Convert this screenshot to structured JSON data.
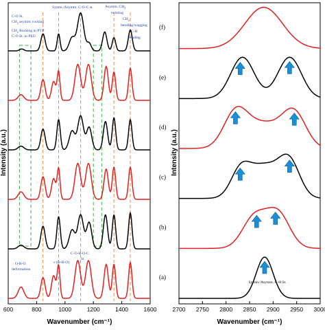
{
  "chart_data": [
    {
      "type": "line",
      "panel": "left",
      "xlabel": "Wavenumber (cm⁻¹)",
      "ylabel": "Intensity (a.u.)",
      "xlim": [
        600,
        1600
      ],
      "x_ticks": [
        "600",
        "800",
        "1000",
        "1200",
        "1400",
        "1600"
      ],
      "spectra": [
        {
          "color": "#000000",
          "peaks": [
            [
              695,
              0.05,
              15
            ],
            [
              845,
              0.45,
              15
            ],
            [
              955,
              0.45,
              10
            ],
            [
              1050,
              0.35,
              20
            ],
            [
              1110,
              1.0,
              22
            ],
            [
              1170,
              0.2,
              15
            ],
            [
              1280,
              0.5,
              15
            ],
            [
              1345,
              0.35,
              12
            ],
            [
              1460,
              0.55,
              14
            ]
          ]
        },
        {
          "color": "#e02020",
          "peaks": [
            [
              690,
              0.15,
              20
            ],
            [
              845,
              0.55,
              15
            ],
            [
              920,
              0.5,
              15
            ],
            [
              955,
              0.75,
              10
            ],
            [
              1090,
              0.95,
              20
            ],
            [
              1165,
              0.95,
              20
            ],
            [
              1290,
              0.9,
              15
            ],
            [
              1345,
              0.75,
              12
            ],
            [
              1460,
              0.85,
              12
            ]
          ]
        },
        {
          "color": "#000000",
          "peaks": [
            [
              690,
              0.1,
              20
            ],
            [
              845,
              0.55,
              15
            ],
            [
              955,
              0.8,
              12
            ],
            [
              1050,
              0.5,
              20
            ],
            [
              1110,
              0.9,
              20
            ],
            [
              1170,
              0.6,
              18
            ],
            [
              1285,
              0.75,
              15
            ],
            [
              1345,
              0.85,
              12
            ],
            [
              1460,
              0.8,
              12
            ]
          ]
        },
        {
          "color": "#e02020",
          "peaks": [
            [
              690,
              0.2,
              20
            ],
            [
              845,
              0.6,
              15
            ],
            [
              920,
              0.55,
              15
            ],
            [
              955,
              0.8,
              10
            ],
            [
              1090,
              0.95,
              20
            ],
            [
              1165,
              0.95,
              20
            ],
            [
              1290,
              0.8,
              15
            ],
            [
              1345,
              0.85,
              12
            ],
            [
              1460,
              0.85,
              12
            ]
          ]
        },
        {
          "color": "#000000",
          "peaks": [
            [
              690,
              0.1,
              20
            ],
            [
              845,
              0.6,
              15
            ],
            [
              955,
              0.85,
              12
            ],
            [
              1050,
              0.5,
              20
            ],
            [
              1110,
              0.9,
              20
            ],
            [
              1170,
              0.7,
              18
            ],
            [
              1285,
              0.9,
              15
            ],
            [
              1345,
              0.9,
              12
            ],
            [
              1460,
              0.95,
              12
            ]
          ]
        },
        {
          "color": "#e02020",
          "peaks": [
            [
              690,
              0.3,
              20
            ],
            [
              845,
              0.55,
              15
            ],
            [
              920,
              0.6,
              15
            ],
            [
              955,
              0.85,
              10
            ],
            [
              1090,
              1.0,
              20
            ],
            [
              1165,
              1.0,
              20
            ],
            [
              1290,
              0.9,
              15
            ],
            [
              1345,
              0.9,
              12
            ],
            [
              1460,
              0.95,
              12
            ]
          ]
        }
      ],
      "annotations": [
        {
          "text": "Symm./Asymm. C-O-C st."
        },
        {
          "text": "Asymm. CH",
          "sub": "2"
        },
        {
          "text": "twisting"
        },
        {
          "text": "CH",
          "sub": "2"
        },
        {
          "text": "bending/wagging"
        },
        {
          "text": "C-H"
        },
        {
          "text": "Bending"
        },
        {
          "text": "C-O St."
        },
        {
          "text": "CH",
          "sub": "2",
          "tail": " asymm. rocking"
        },
        {
          "text": "CH",
          "sub": "2",
          "tail": " Rocking in PVP"
        },
        {
          "text": "C-O St. in PEO"
        },
        {
          "text": "O-B-O"
        },
        {
          "text": "deformation"
        },
        {
          "text": "ν (O-B-O)"
        },
        {
          "text": "C-O-B-O-C"
        },
        {
          "text": "St."
        }
      ],
      "guide_lines": {
        "dashed_orange": [
          845,
          955,
          1110,
          1345,
          1460
        ],
        "dashed_green_boxes": [
          [
            680,
            760
          ],
          [
            1200,
            1260
          ]
        ]
      }
    },
    {
      "type": "line",
      "panel": "right",
      "xlabel": "Wavenumber (cm⁻¹)",
      "ylabel": "Intensity (a.u.)",
      "xlim": [
        2700,
        3000
      ],
      "x_ticks": [
        "2700",
        "2750",
        "2800",
        "2850",
        "2900",
        "2950",
        "3000"
      ],
      "panels": [
        "(f)",
        "(e)",
        "(d)",
        "(c)",
        "(b)",
        "(a)"
      ],
      "spectra": [
        {
          "label": "(f)",
          "color": "#e02020",
          "peaks": [
            [
              2880,
              1.0,
              40
            ]
          ]
        },
        {
          "label": "(e)",
          "color": "#000000",
          "peaks": [
            [
              2835,
              1.0,
              25
            ],
            [
              2935,
              1.0,
              25
            ]
          ]
        },
        {
          "label": "(d)",
          "color": "#e02020",
          "peaks": [
            [
              2820,
              0.8,
              25
            ],
            [
              2945,
              0.8,
              25
            ],
            [
              2880,
              0.6,
              40
            ]
          ]
        },
        {
          "label": "(c)",
          "color": "#000000",
          "peaks": [
            [
              2830,
              0.55,
              20
            ],
            [
              2880,
              0.8,
              35
            ],
            [
              2935,
              0.8,
              22
            ]
          ]
        },
        {
          "label": "(b)",
          "color": "#e02020",
          "peaks": [
            [
              2860,
              0.75,
              25
            ],
            [
              2910,
              0.85,
              25
            ]
          ]
        },
        {
          "label": "(a)",
          "color": "#000000",
          "peaks": [
            [
              2882,
              1.0,
              18
            ]
          ]
        }
      ],
      "arrow_positions": {
        "(e)": [
          2830,
          2935
        ],
        "(d)": [
          2820,
          2945
        ],
        "(c)": [
          2830,
          2935
        ],
        "(b)": [
          2865,
          2905
        ],
        "(a)": [
          2882
        ]
      },
      "annotation": "Symm./Asymm. C-H St."
    }
  ]
}
